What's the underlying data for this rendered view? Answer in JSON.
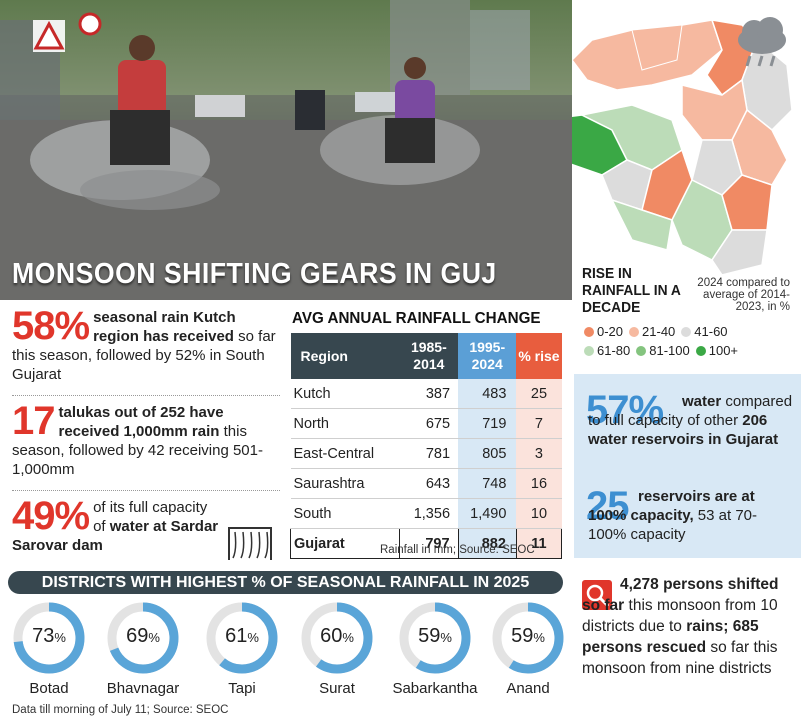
{
  "headline": "MONSOON SHIFTING GEARS IN GUJ",
  "map": {
    "title": "RISE IN RAINFALL IN A DECADE",
    "note": "2024 compared to average of 2014-2023, in %",
    "legend": [
      {
        "label": "0-20",
        "color": "#f08a64"
      },
      {
        "label": "21-40",
        "color": "#f6b9a0"
      },
      {
        "label": "41-60",
        "color": "#dcdcdc"
      },
      {
        "label": "61-80",
        "color": "#bcdcb8"
      },
      {
        "label": "81-100",
        "color": "#84c47f"
      },
      {
        "label": "100+",
        "color": "#3aa845"
      }
    ]
  },
  "stats": {
    "kutch": {
      "big": "58%",
      "bold": "seasonal rain Kutch region has received",
      "rest": " so far this season, followed by 52% in South Gujarat"
    },
    "talukas": {
      "big": "17",
      "bold": "talukas out of 252 have received 1,000mm rain",
      "rest": " this season, followed by 42 receiving 501-1,000mm"
    },
    "sardar": {
      "big": "49%",
      "text1": "of its full capacity of ",
      "bold": "water at Sardar Sarovar dam"
    }
  },
  "table": {
    "title": "AVG ANNUAL RAINFALL CHANGE",
    "headers": [
      "Region",
      "1985-2014",
      "1995-2024",
      "% rise"
    ],
    "rows": [
      {
        "region": "Kutch",
        "a": "387",
        "b": "483",
        "rise": "25"
      },
      {
        "region": "North",
        "a": "675",
        "b": "719",
        "rise": "7"
      },
      {
        "region": "East-Central",
        "a": "781",
        "b": "805",
        "rise": "3"
      },
      {
        "region": "Saurashtra",
        "a": "643",
        "b": "748",
        "rise": "16"
      },
      {
        "region": "South",
        "a": "1,356",
        "b": "1,490",
        "rise": "10"
      }
    ],
    "total": {
      "region": "Gujarat",
      "a": "797",
      "b": "882",
      "rise": "11"
    },
    "note": "Rainfall in mm; Source: SEOC"
  },
  "reservoirs": {
    "pct": {
      "big": "57%",
      "bold1": "water",
      "mid": " compared to full capacity of other ",
      "bold2": "206 water reservoirs in Gujarat"
    },
    "full": {
      "big": "25",
      "bold": "reservoirs are at 100% capacity,",
      "rest": " 53 at 70-100% capacity"
    }
  },
  "districts": {
    "title": "DISTRICTS WITH HIGHEST % OF SEASONAL RAINFALL IN 2025",
    "items": [
      {
        "name": "Botad",
        "value": 73
      },
      {
        "name": "Bhavnagar",
        "value": 69
      },
      {
        "name": "Tapi",
        "value": 61
      },
      {
        "name": "Surat",
        "value": 60
      },
      {
        "name": "Sabarkantha",
        "value": 59
      },
      {
        "name": "Anand",
        "value": 59
      }
    ],
    "note": "Data till morning of July 11; Source: SEOC"
  },
  "shifted": {
    "bold1": "4,278 persons shifted so far",
    "mid1": " this monsoon from 10 districts due to ",
    "bold2": "rains; 685 persons rescued",
    "rest": " so far this monsoon from nine districts"
  }
}
